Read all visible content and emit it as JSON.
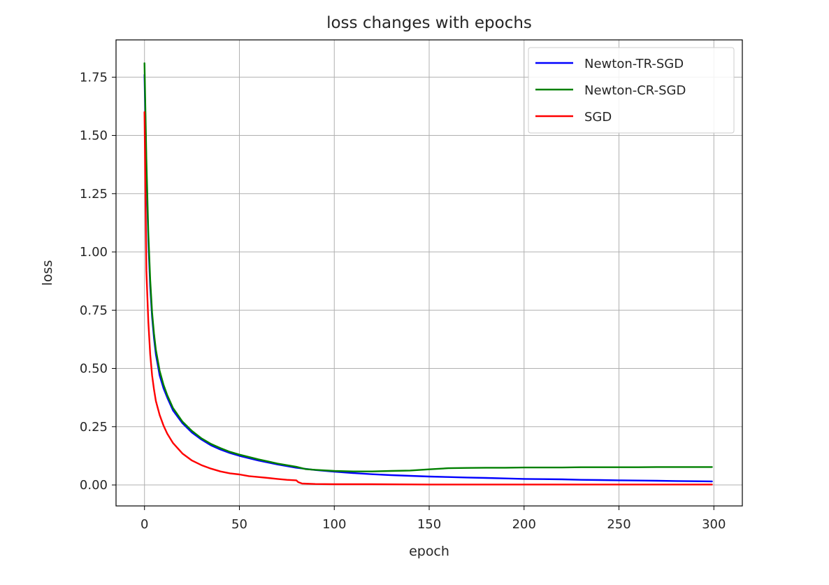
{
  "chart_data": {
    "type": "line",
    "title": "loss changes with epochs",
    "xlabel": "epoch",
    "ylabel": "loss",
    "xlim": [
      -15,
      315
    ],
    "ylim": [
      -0.09,
      1.91
    ],
    "xticks": [
      0,
      50,
      100,
      150,
      200,
      250,
      300
    ],
    "yticks": [
      0.0,
      0.25,
      0.5,
      0.75,
      1.0,
      1.25,
      1.5,
      1.75
    ],
    "xtick_labels": [
      "0",
      "50",
      "100",
      "150",
      "200",
      "250",
      "300"
    ],
    "ytick_labels": [
      "0.00",
      "0.25",
      "0.50",
      "0.75",
      "1.00",
      "1.25",
      "1.50",
      "1.75"
    ],
    "grid": true,
    "legend_position": "top-right",
    "series": [
      {
        "name": "Newton-TR-SGD",
        "color": "#0000ff",
        "x": [
          0,
          1,
          2,
          3,
          4,
          5,
          6,
          8,
          10,
          12,
          15,
          20,
          25,
          30,
          35,
          40,
          45,
          50,
          60,
          70,
          80,
          90,
          100,
          110,
          120,
          130,
          140,
          150,
          160,
          170,
          180,
          190,
          200,
          210,
          220,
          230,
          240,
          250,
          260,
          270,
          280,
          290,
          299
        ],
        "y": [
          1.76,
          1.35,
          1.05,
          0.85,
          0.72,
          0.63,
          0.56,
          0.47,
          0.415,
          0.375,
          0.32,
          0.265,
          0.225,
          0.195,
          0.17,
          0.152,
          0.137,
          0.125,
          0.105,
          0.088,
          0.074,
          0.064,
          0.057,
          0.051,
          0.046,
          0.042,
          0.039,
          0.036,
          0.034,
          0.032,
          0.03,
          0.028,
          0.026,
          0.025,
          0.024,
          0.022,
          0.021,
          0.02,
          0.019,
          0.018,
          0.017,
          0.016,
          0.015
        ]
      },
      {
        "name": "Newton-CR-SGD",
        "color": "#008000",
        "x": [
          0,
          1,
          2,
          3,
          4,
          5,
          6,
          8,
          10,
          12,
          15,
          20,
          25,
          30,
          35,
          40,
          45,
          50,
          60,
          70,
          80,
          85,
          90,
          100,
          110,
          120,
          130,
          140,
          150,
          160,
          170,
          180,
          190,
          200,
          210,
          220,
          230,
          240,
          250,
          260,
          270,
          280,
          290,
          299
        ],
        "y": [
          1.81,
          1.4,
          1.08,
          0.88,
          0.74,
          0.65,
          0.58,
          0.49,
          0.43,
          0.385,
          0.33,
          0.272,
          0.232,
          0.2,
          0.176,
          0.158,
          0.142,
          0.13,
          0.11,
          0.092,
          0.078,
          0.068,
          0.065,
          0.06,
          0.058,
          0.058,
          0.06,
          0.062,
          0.067,
          0.072,
          0.073,
          0.074,
          0.074,
          0.075,
          0.075,
          0.075,
          0.076,
          0.076,
          0.076,
          0.076,
          0.077,
          0.077,
          0.077,
          0.077
        ]
      },
      {
        "name": "SGD",
        "color": "#ff0000",
        "x": [
          0,
          1,
          2,
          3,
          4,
          5,
          6,
          8,
          10,
          12,
          15,
          20,
          25,
          30,
          35,
          40,
          45,
          50,
          55,
          60,
          65,
          70,
          75,
          80,
          81,
          83,
          90,
          100,
          120,
          150,
          200,
          250,
          299
        ],
        "y": [
          1.6,
          0.92,
          0.7,
          0.56,
          0.47,
          0.41,
          0.36,
          0.3,
          0.255,
          0.22,
          0.18,
          0.135,
          0.105,
          0.085,
          0.07,
          0.058,
          0.05,
          0.045,
          0.038,
          0.034,
          0.03,
          0.026,
          0.022,
          0.02,
          0.012,
          0.006,
          0.004,
          0.003,
          0.003,
          0.002,
          0.002,
          0.002,
          0.002
        ]
      }
    ]
  }
}
